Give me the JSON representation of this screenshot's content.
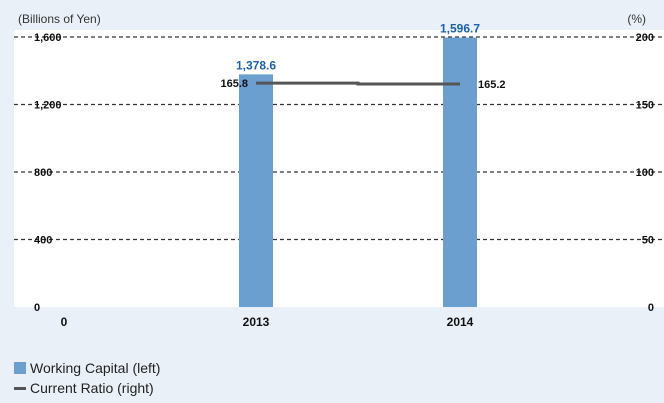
{
  "chart_data": {
    "type": "bar",
    "categories": [
      "2013",
      "2014"
    ],
    "series": [
      {
        "name": "Working Capital (left)",
        "type": "bar",
        "axis": "left",
        "values": [
          1378.6,
          1596.7
        ],
        "labels": [
          "1,378.6",
          "1,596.7"
        ]
      },
      {
        "name": "Current Ratio (right)",
        "type": "line",
        "axis": "right",
        "values": [
          165.8,
          165.2
        ],
        "labels": [
          "165.8",
          "165.2"
        ]
      }
    ],
    "left_axis": {
      "unit": "(Billions of Yen)",
      "range": [
        0,
        1600
      ],
      "ticks": [
        "0",
        "400",
        "800",
        "1,200",
        "1,600"
      ]
    },
    "right_axis": {
      "unit": "(%)",
      "range": [
        0,
        200
      ],
      "ticks": [
        "0",
        "50",
        "100",
        "150",
        "200"
      ]
    },
    "grid": "dashed horizontal",
    "legend_position": "bottom-left",
    "colors": {
      "bar": "#6a9fd0",
      "bar_label": "#1a5fb4",
      "line": "#555555",
      "grid": "#333333",
      "background": "#eaf0f7",
      "plot_bg": "#ffffff"
    }
  }
}
